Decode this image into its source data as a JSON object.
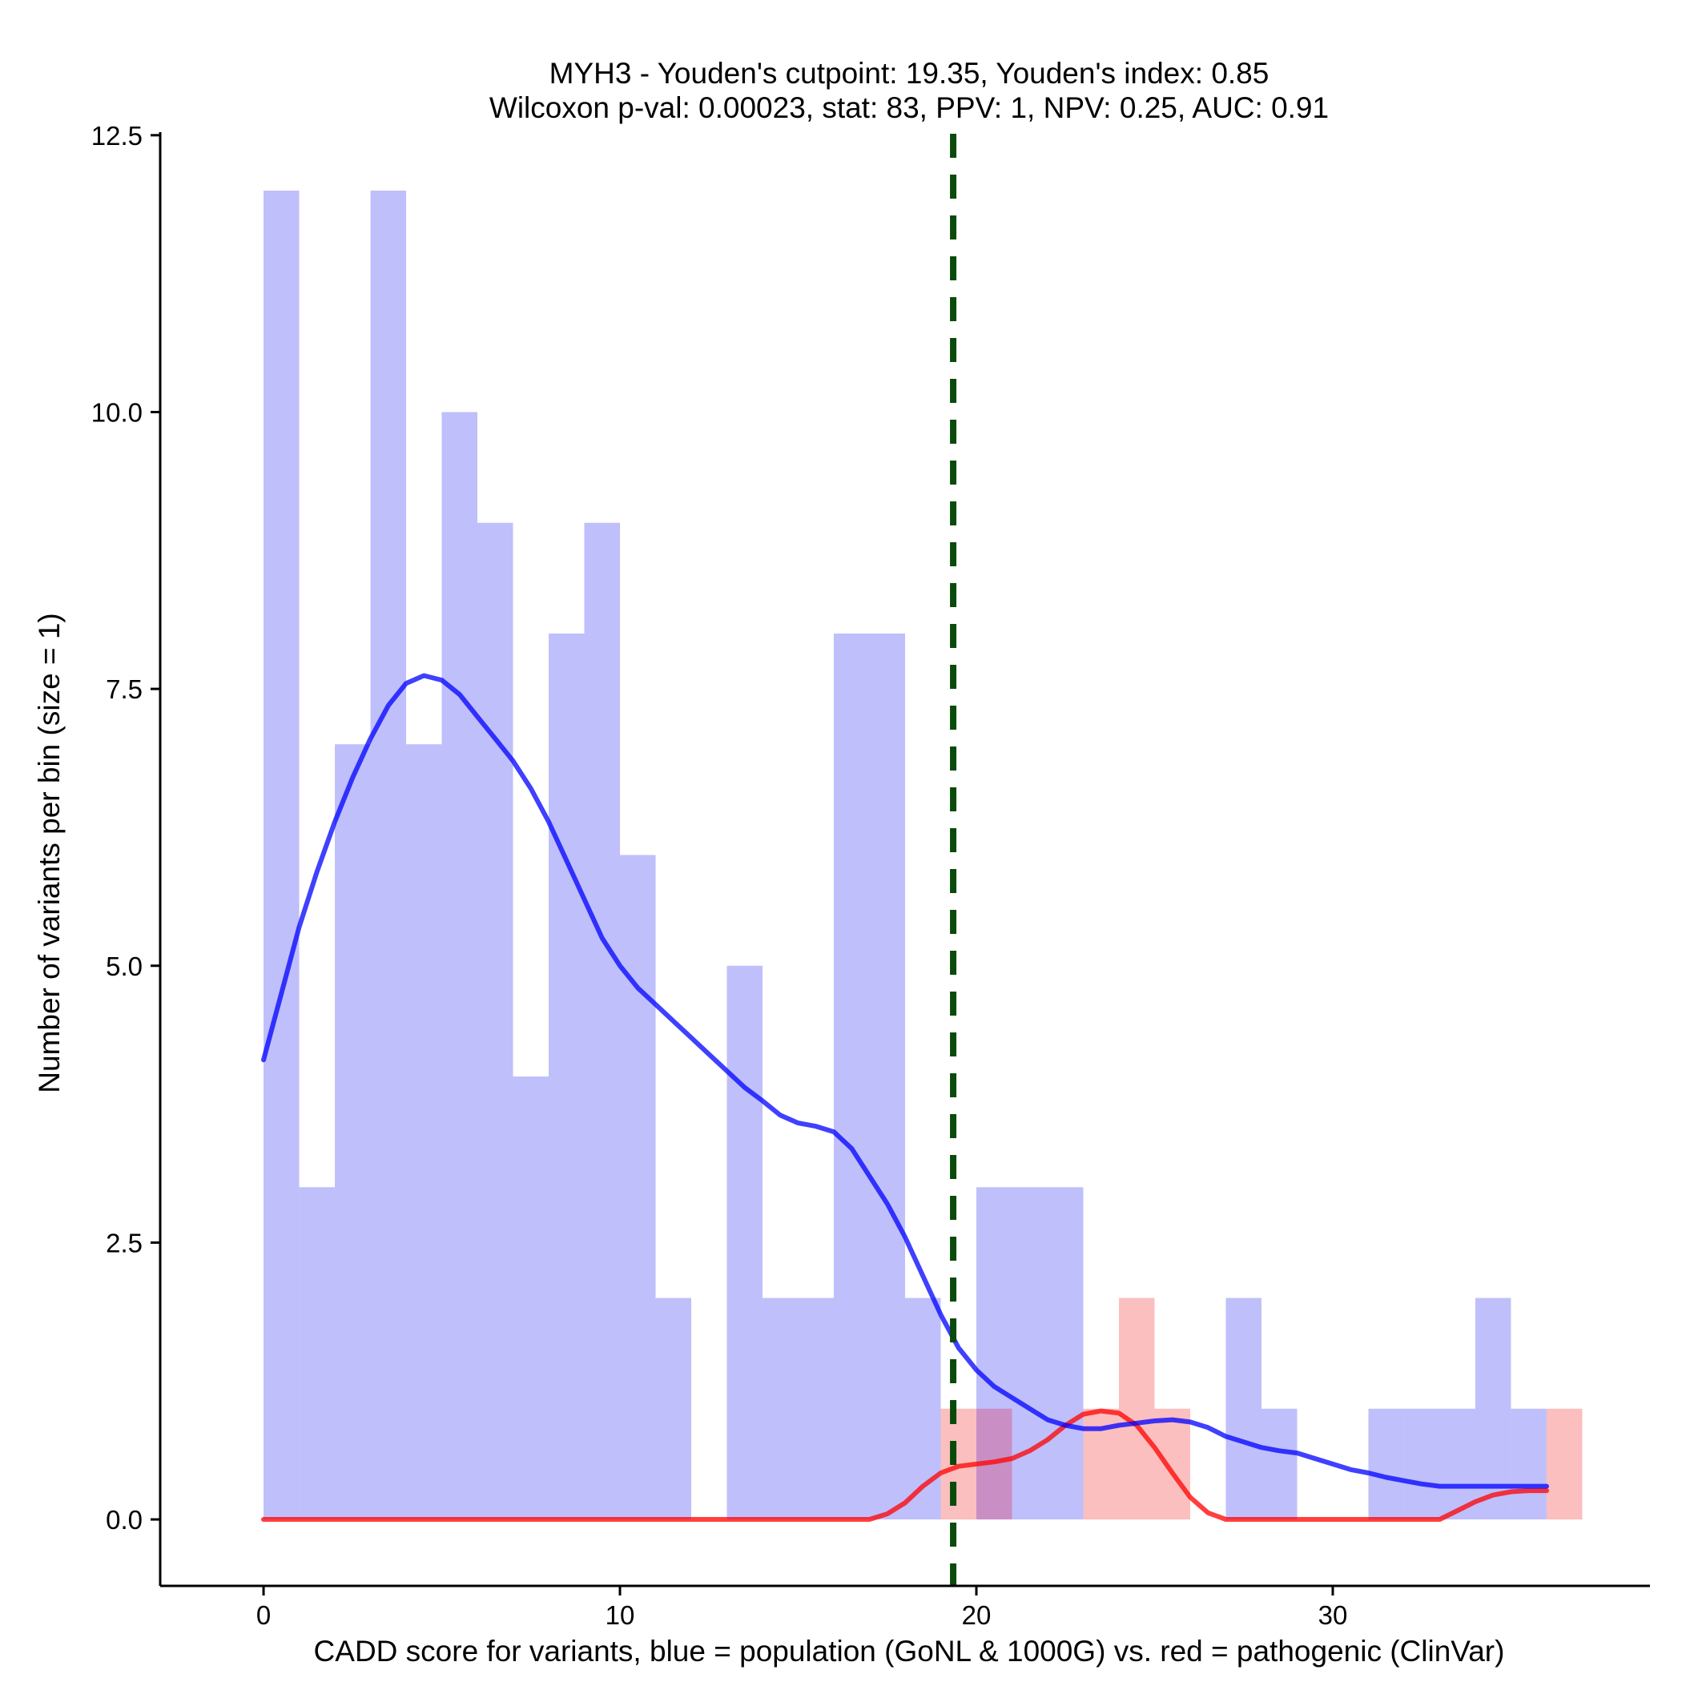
{
  "chart_data": {
    "type": "bar",
    "title_line1": "MYH3 - Youden's cutpoint: 19.35, Youden's index: 0.85",
    "title_line2": "Wilcoxon p-val: 0.00023, stat: 83, PPV: 1, NPV: 0.25, AUC: 0.91",
    "xlabel": "CADD score for variants, blue = population (GoNL & 1000G) vs. red = pathogenic (ClinVar)",
    "ylabel": "Number of variants per bin (size = 1)",
    "xlim": [
      -2.9,
      38.9
    ],
    "ylim": [
      -0.6,
      12.6
    ],
    "x_ticks": [
      0,
      10,
      20,
      30
    ],
    "x_tick_labels": [
      "0",
      "10",
      "20",
      "30"
    ],
    "y_ticks": [
      0,
      2.5,
      5,
      7.5,
      10,
      12.5
    ],
    "y_tick_labels": [
      "0.0",
      "2.5",
      "5.0",
      "7.5",
      "10.0",
      "12.5"
    ],
    "bin_width": 1,
    "cutpoint": 19.35,
    "series": [
      {
        "name": "population (GoNL & 1000G)",
        "color": "#0000ff",
        "bar_color": "#bfbffb",
        "bins_start": [
          0,
          1,
          2,
          3,
          4,
          5,
          6,
          7,
          8,
          9,
          10,
          11,
          13,
          14,
          15,
          16,
          17,
          18,
          20,
          21,
          22,
          27,
          28,
          31,
          32,
          33,
          34,
          35
        ],
        "counts": [
          12,
          3,
          7,
          12,
          7,
          10,
          9,
          4,
          8,
          9,
          6,
          2,
          5,
          2,
          2,
          8,
          8,
          2,
          3,
          3,
          3,
          2,
          1,
          1,
          1,
          1,
          2,
          1
        ],
        "density_x": [
          0,
          0.5,
          1,
          1.5,
          2,
          2.5,
          3,
          3.5,
          4,
          4.5,
          5,
          5.5,
          6,
          6.5,
          7,
          7.5,
          8,
          8.5,
          9,
          9.5,
          10,
          10.5,
          11,
          11.5,
          12,
          12.5,
          13,
          13.5,
          14,
          14.5,
          15,
          15.5,
          16,
          16.5,
          17,
          17.5,
          18,
          18.5,
          19,
          19.5,
          20,
          20.5,
          21,
          21.5,
          22,
          22.5,
          23,
          23.5,
          24,
          24.5,
          25,
          25.5,
          26,
          26.5,
          27,
          27.5,
          28,
          28.5,
          29,
          29.5,
          30,
          30.5,
          31,
          31.5,
          32,
          32.5,
          33,
          33.5,
          34,
          34.5,
          35,
          35.5,
          36
        ],
        "density_y": [
          4.15,
          4.75,
          5.35,
          5.85,
          6.3,
          6.7,
          7.05,
          7.35,
          7.55,
          7.62,
          7.58,
          7.45,
          7.25,
          7.05,
          6.85,
          6.6,
          6.3,
          5.95,
          5.6,
          5.25,
          5.0,
          4.8,
          4.65,
          4.5,
          4.35,
          4.2,
          4.05,
          3.9,
          3.78,
          3.65,
          3.58,
          3.55,
          3.5,
          3.35,
          3.1,
          2.85,
          2.55,
          2.2,
          1.85,
          1.55,
          1.35,
          1.2,
          1.1,
          1.0,
          0.9,
          0.85,
          0.82,
          0.82,
          0.85,
          0.87,
          0.89,
          0.9,
          0.88,
          0.83,
          0.75,
          0.7,
          0.65,
          0.62,
          0.6,
          0.55,
          0.5,
          0.45,
          0.42,
          0.38,
          0.35,
          0.32,
          0.3,
          0.3,
          0.3,
          0.3,
          0.3,
          0.3,
          0.3
        ]
      },
      {
        "name": "pathogenic (ClinVar)",
        "color": "#ff0000",
        "bar_color": "#fbbfbf",
        "bins_start": [
          19,
          20,
          23,
          24,
          25,
          36
        ],
        "counts": [
          1,
          1,
          1,
          2,
          1,
          1
        ],
        "density_x": [
          0,
          17,
          17.5,
          18,
          18.5,
          19,
          19.5,
          20,
          20.5,
          21,
          21.5,
          22,
          22.5,
          23,
          23.5,
          24,
          24.5,
          25,
          25.5,
          26,
          26.5,
          27,
          27.5,
          28,
          28.5,
          29,
          30,
          31,
          32,
          33,
          33.5,
          34,
          34.5,
          35,
          35.5,
          36
        ],
        "density_y": [
          0,
          0,
          0.05,
          0.15,
          0.3,
          0.42,
          0.48,
          0.5,
          0.52,
          0.55,
          0.62,
          0.72,
          0.85,
          0.95,
          0.98,
          0.96,
          0.85,
          0.65,
          0.42,
          0.2,
          0.06,
          0,
          0,
          0,
          0,
          0,
          0,
          0,
          0,
          0,
          0.08,
          0.16,
          0.22,
          0.25,
          0.26,
          0.26
        ]
      }
    ],
    "cutpoint_color": "#0a4a0a",
    "overlap_color": "#c98fc4"
  }
}
